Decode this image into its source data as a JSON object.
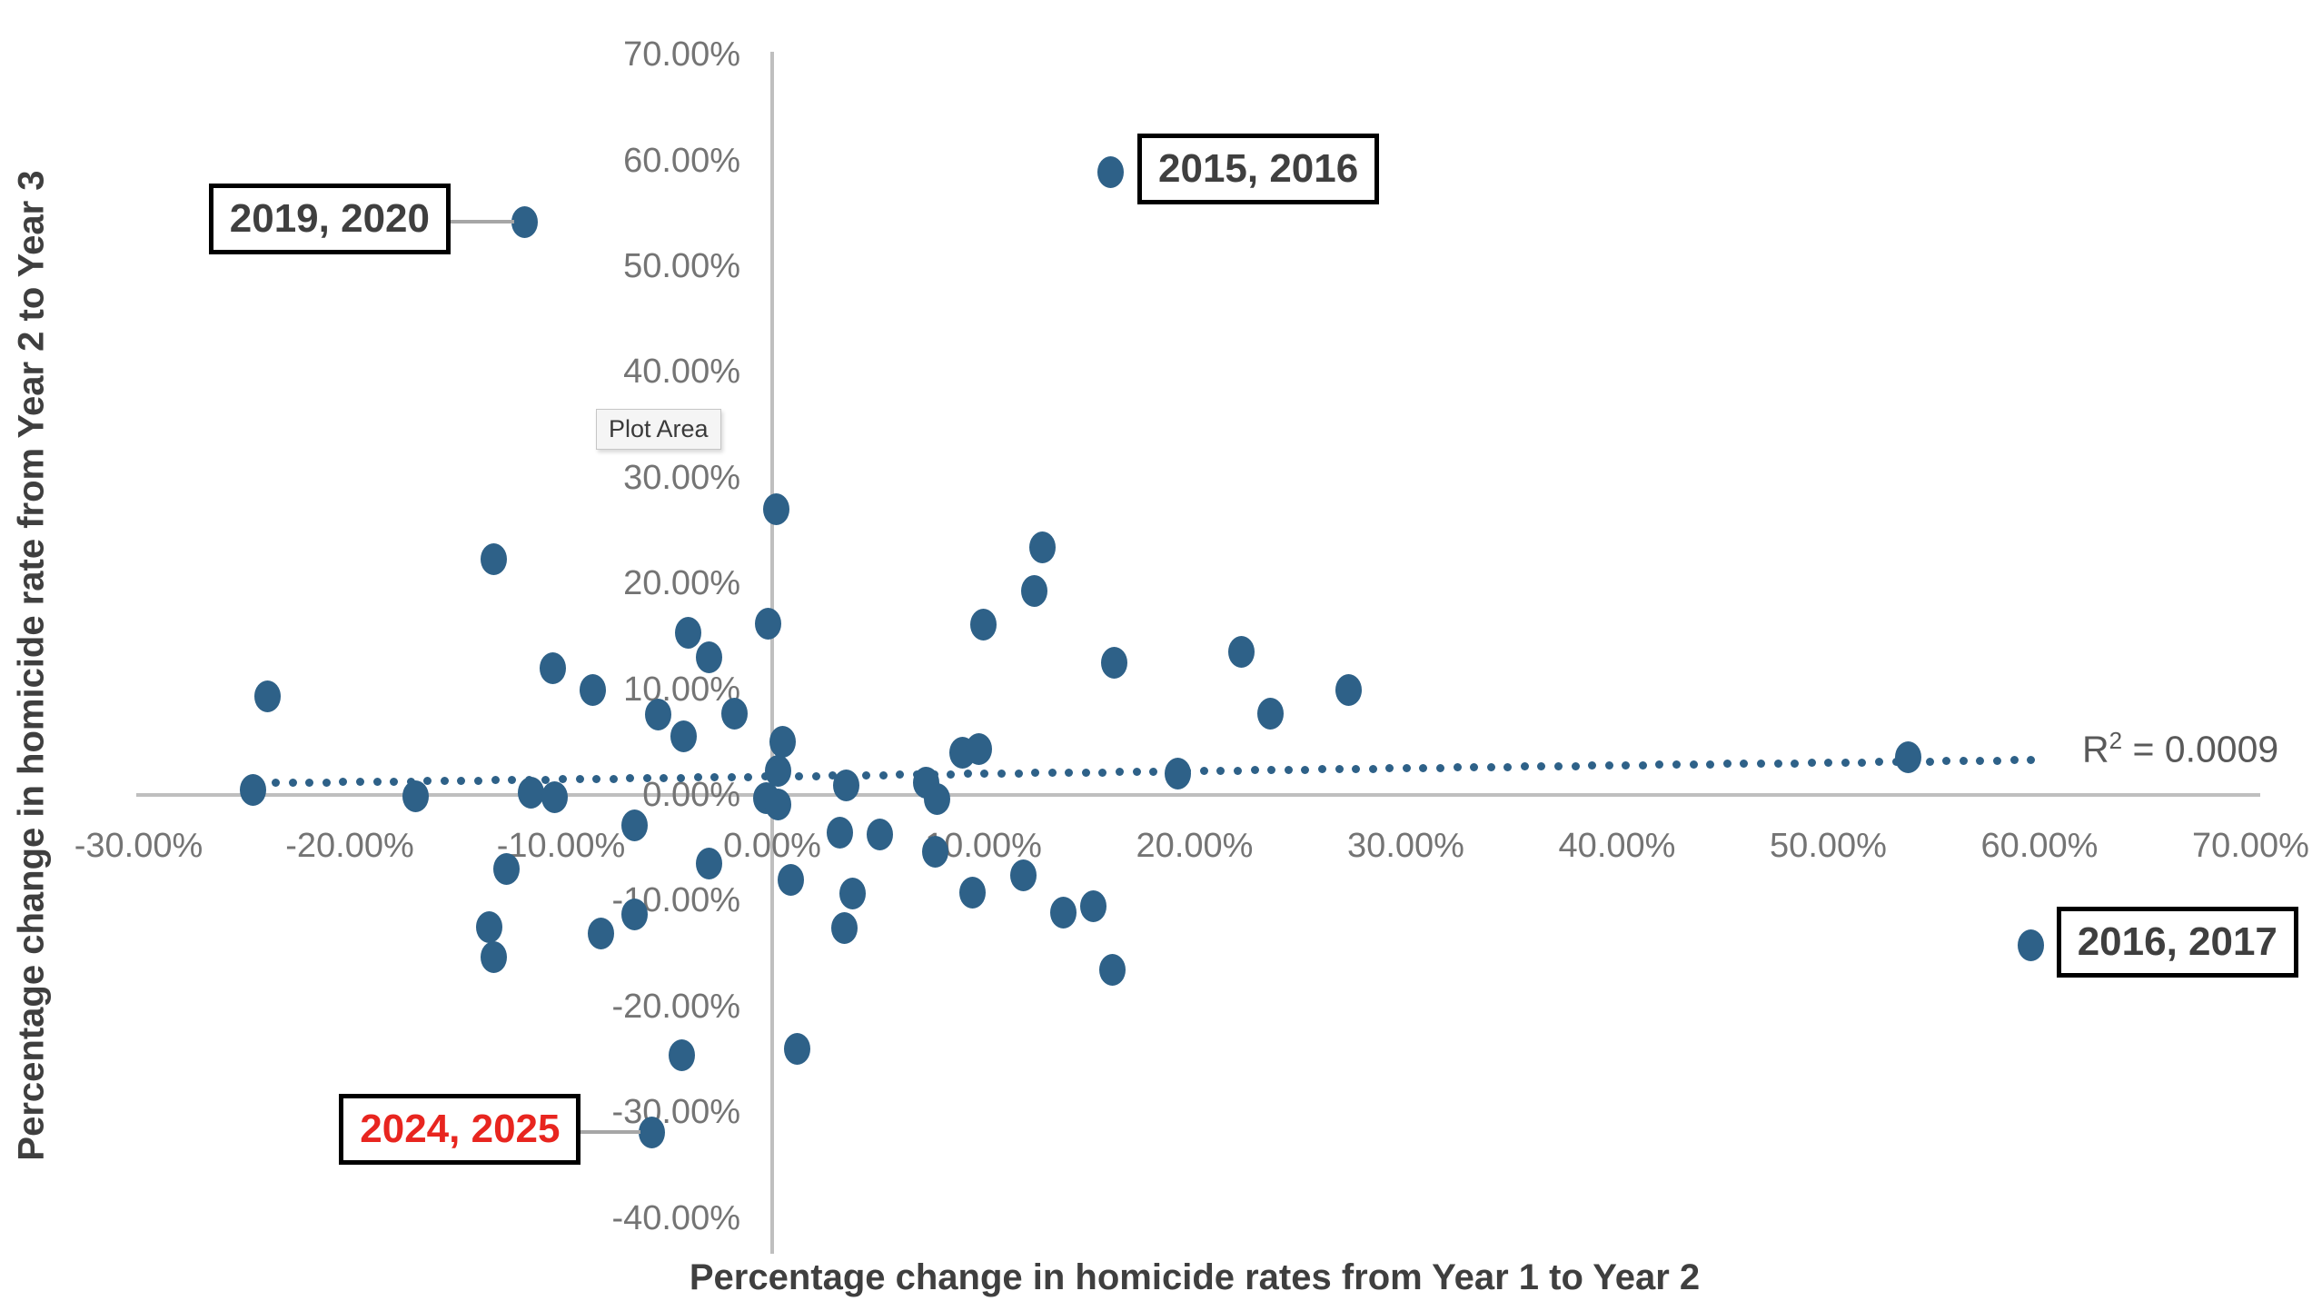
{
  "chart_data": {
    "type": "scatter",
    "title": "",
    "xlabel": "Percentage change in homicide rates from Year 1 to Year 2",
    "ylabel": "Percentage change in homicide rate from Year 2 to Year 3",
    "xlim": [
      -30,
      70
    ],
    "ylim": [
      -40,
      70
    ],
    "grid": false,
    "legend": "none",
    "plot_area_tooltip": "Plot Area",
    "x_ticks": [
      {
        "v": -30,
        "label": "-30.00%"
      },
      {
        "v": -20,
        "label": "-20.00%"
      },
      {
        "v": -10,
        "label": "-10.00%"
      },
      {
        "v": 0,
        "label": "0.00%"
      },
      {
        "v": 10,
        "label": "10.00%"
      },
      {
        "v": 20,
        "label": "20.00%"
      },
      {
        "v": 30,
        "label": "30.00%"
      },
      {
        "v": 40,
        "label": "40.00%"
      },
      {
        "v": 50,
        "label": "50.00%"
      },
      {
        "v": 60,
        "label": "60.00%"
      },
      {
        "v": 70,
        "label": "70.00%"
      }
    ],
    "y_ticks": [
      {
        "v": 70,
        "label": "70.00%"
      },
      {
        "v": 60,
        "label": "60.00%"
      },
      {
        "v": 50,
        "label": "50.00%"
      },
      {
        "v": 40,
        "label": "40.00%"
      },
      {
        "v": 30,
        "label": "30.00%"
      },
      {
        "v": 20,
        "label": "20.00%"
      },
      {
        "v": 10,
        "label": "10.00%"
      },
      {
        "v": 0,
        "label": "0.00%"
      },
      {
        "v": -10,
        "label": "-10.00%"
      },
      {
        "v": -20,
        "label": "-20.00%"
      },
      {
        "v": -30,
        "label": "-30.00%"
      },
      {
        "v": -40,
        "label": "-40.00%"
      }
    ],
    "points": [
      [
        -24.6,
        0.5
      ],
      [
        -23.9,
        9.3
      ],
      [
        -16.9,
        -0.1
      ],
      [
        -13.2,
        22.3
      ],
      [
        -13.4,
        -12.5
      ],
      [
        -13.2,
        -15.3
      ],
      [
        -12.6,
        -7.0
      ],
      [
        -11.4,
        0.2
      ],
      [
        -10.4,
        12.0
      ],
      [
        -10.3,
        -0.2
      ],
      [
        -8.5,
        9.9
      ],
      [
        -8.1,
        -13.1
      ],
      [
        -6.5,
        -2.9
      ],
      [
        -6.5,
        -11.3
      ],
      [
        -5.4,
        7.6
      ],
      [
        -4.3,
        -24.6
      ],
      [
        -4.2,
        5.5
      ],
      [
        -4.0,
        15.3
      ],
      [
        -3.0,
        13.0
      ],
      [
        -3.0,
        -6.5
      ],
      [
        -1.8,
        7.7
      ],
      [
        -0.2,
        16.2
      ],
      [
        -0.3,
        -0.3
      ],
      [
        0.2,
        27.0
      ],
      [
        0.3,
        2.3
      ],
      [
        0.5,
        5.0
      ],
      [
        0.3,
        -0.9
      ],
      [
        0.9,
        -8.0
      ],
      [
        1.2,
        -24.0
      ],
      [
        3.5,
        0.9
      ],
      [
        3.2,
        -3.6
      ],
      [
        3.8,
        -9.3
      ],
      [
        3.4,
        -12.6
      ],
      [
        5.1,
        -3.7
      ],
      [
        7.3,
        1.2
      ],
      [
        7.8,
        -0.4
      ],
      [
        7.7,
        -5.4
      ],
      [
        9.0,
        4.0
      ],
      [
        9.8,
        4.3
      ],
      [
        9.5,
        -9.2
      ],
      [
        10.0,
        16.1
      ],
      [
        11.9,
        -7.6
      ],
      [
        12.4,
        19.3
      ],
      [
        12.8,
        23.4
      ],
      [
        13.8,
        -11.1
      ],
      [
        15.2,
        -10.5
      ],
      [
        16.2,
        12.5
      ],
      [
        16.1,
        -16.5
      ],
      [
        19.2,
        2.0
      ],
      [
        22.2,
        13.5
      ],
      [
        23.6,
        7.7
      ],
      [
        27.3,
        9.9
      ],
      [
        53.8,
        3.6
      ]
    ],
    "labeled_points": [
      {
        "label": "2015, 2016",
        "x": 16.0,
        "y": 58.9,
        "side": "right",
        "gap": 30,
        "connector": false,
        "text_color": "#3f3f3f"
      },
      {
        "label": "2019, 2020",
        "x": -11.7,
        "y": 54.2,
        "side": "left",
        "gap": 82,
        "connector": true,
        "text_color": "#3f3f3f"
      },
      {
        "label": "2016, 2017",
        "x": 59.6,
        "y": -14.2,
        "side": "right",
        "gap": 28,
        "connector": false,
        "text_color": "#3f3f3f"
      },
      {
        "label": "2024, 2025",
        "x": -5.7,
        "y": -31.9,
        "side": "left",
        "gap": 78,
        "connector": true,
        "text_color": "#e8251f"
      }
    ],
    "trendline": {
      "style": "dotted",
      "x1": -24.3,
      "y1": 1.1,
      "x2": 59.6,
      "y2": 3.3,
      "r2": {
        "base": "R",
        "sup": "2",
        "rest": " = 0.0009"
      }
    },
    "colors": {
      "marker": "#2e6188",
      "trendline": "#2e6188",
      "axis_line": "#bfbfbf",
      "tick_text": "#747474",
      "axis_title_text": "#3f3f3f",
      "r2_text": "#595959",
      "callout_border": "#000000",
      "callout_connector": "#a6a6a6",
      "negative_label_text": "#e8251f"
    }
  }
}
